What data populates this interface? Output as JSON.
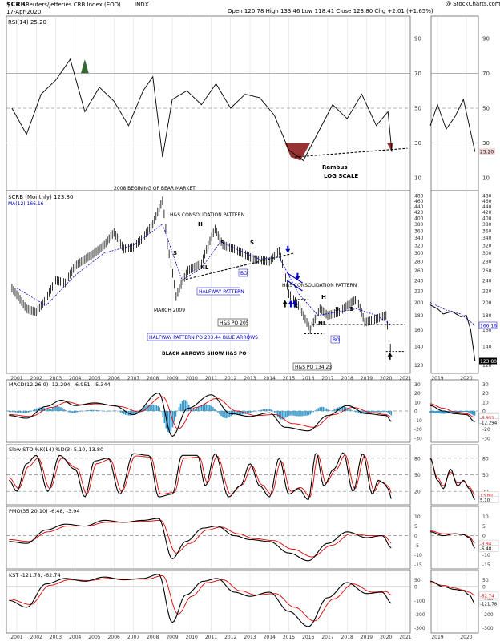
{
  "header": {
    "symbol": "$CRB",
    "name": "Reuters/Jefferies CRB Index (EOD)",
    "exchange": "INDX",
    "date": "17-Apr-2020",
    "ohlc": "Open 120.78   High 133.46   Low 118.41   Close 123.80   Chg +2.01 (+1.65%)",
    "chg_arrow": "▲",
    "copyright": "@ StockCharts.com"
  },
  "chart_data": [
    {
      "type": "line",
      "panel": "rsi",
      "title": "RSI(14) 25.20",
      "ylim": [
        0,
        100
      ],
      "yticks": [
        "10",
        "30",
        "50",
        "70",
        "90"
      ],
      "reference_lines": [
        30,
        50,
        70
      ],
      "last_value_label": "25.20",
      "x": [
        2000.75,
        2001.5,
        2002.25,
        2003,
        2003.75,
        2004.5,
        2005.25,
        2006,
        2006.75,
        2007.5,
        2008,
        2008.5,
        2009,
        2009.75,
        2010.5,
        2011.25,
        2012,
        2012.75,
        2013.5,
        2014.25,
        2015,
        2015.75,
        2016.5,
        2017.25,
        2018,
        2018.75,
        2019.5,
        2020.1,
        2020.3
      ],
      "values": [
        50,
        35,
        58,
        66,
        78,
        48,
        62,
        54,
        40,
        60,
        68,
        22,
        55,
        60,
        52,
        64,
        50,
        58,
        56,
        46,
        26,
        20,
        36,
        52,
        44,
        58,
        40,
        48,
        25
      ],
      "annotations": [
        "Rambus",
        "LOG SCALE",
        "2008 BEGINING OF BEAR MARKET"
      ]
    },
    {
      "type": "bar",
      "panel": "price",
      "title": "$CRB (Monthly) 123.80",
      "scale": "log",
      "ylim": [
        115,
        480
      ],
      "yticks": [
        "120",
        "140",
        "160",
        "180",
        "200",
        "220",
        "240",
        "260",
        "280",
        "300",
        "320",
        "340",
        "360",
        "380",
        "400",
        "420",
        "440",
        "460",
        "480"
      ],
      "series": [
        {
          "name": "$CRB (Monthly) 123.80",
          "x": [
            2000.75,
            2001.5,
            2002,
            2002.5,
            2003,
            2003.5,
            2004,
            2004.5,
            2005,
            2005.5,
            2006,
            2006.5,
            2007,
            2007.5,
            2008,
            2008.5,
            2008.75,
            2009.2,
            2009.8,
            2010.5,
            2011.2,
            2011.6,
            2012.2,
            2012.6,
            2013.2,
            2014,
            2014.5,
            2015,
            2015.5,
            2016.1,
            2016.6,
            2017,
            2017.6,
            2018.2,
            2018.5,
            2018.9,
            2019.5,
            2020,
            2020.3
          ],
          "values": [
            225,
            190,
            185,
            205,
            240,
            235,
            270,
            285,
            300,
            320,
            355,
            310,
            315,
            340,
            380,
            460,
            320,
            210,
            260,
            275,
            365,
            320,
            310,
            300,
            285,
            280,
            305,
            215,
            195,
            160,
            190,
            180,
            185,
            200,
            205,
            170,
            175,
            180,
            124
          ]
        },
        {
          "name": "MA(12) 166.16",
          "x": [
            2001,
            2002.5,
            2004,
            2005.5,
            2007,
            2008.5,
            2009.5,
            2010.5,
            2011.5,
            2012.5,
            2013.5,
            2014.5,
            2015.5,
            2016.5,
            2017.5,
            2018.5,
            2019.5,
            2020.3
          ],
          "values": [
            225,
            195,
            250,
            300,
            320,
            380,
            240,
            265,
            330,
            305,
            285,
            290,
            215,
            180,
            185,
            190,
            180,
            166
          ]
        }
      ],
      "annotations": [
        "H&S CONSOLIDATION PATTERN",
        "H",
        "S",
        "S",
        "S",
        "NL",
        "BO",
        "MARCH 2009",
        "HALFWAY PATTERN",
        "H&S PO 205",
        "H&S CONSOLIDATION PATTERN",
        "H",
        "S",
        "S",
        "S",
        "NL",
        "BO",
        "HALFWAY PATTERN PO 203.44 BLUE ARROWS",
        "BLACK ARROWS SHOW H&S PO",
        "H&S PO 134.23"
      ],
      "last_value_labels": [
        "166.16",
        "123.80"
      ]
    },
    {
      "type": "bar",
      "panel": "macd",
      "title": "MACD(12,26,9) -12.294, -6.951, -5.344",
      "ylim": [
        -32,
        32
      ],
      "yticks": [
        "-30",
        "-20",
        "-10",
        "0",
        "10",
        "20",
        "30"
      ],
      "last_value_labels": [
        "-5.344",
        "-6.951",
        "-12.294"
      ]
    },
    {
      "type": "line",
      "panel": "sto",
      "title": "Slow STO %K(14) %D(3) 5.10, 13.80",
      "ylim": [
        0,
        100
      ],
      "yticks": [
        "20",
        "50",
        "80"
      ],
      "last_value_labels": [
        "13.80",
        "5.10"
      ]
    },
    {
      "type": "line",
      "panel": "pmo",
      "title": "PMO(35,20,10) -6.48, -3.94",
      "ylim": [
        -16,
        14
      ],
      "yticks": [
        "-15",
        "-10",
        "-5",
        "0",
        "5",
        "10"
      ],
      "last_value_labels": [
        "-3.94",
        "-6.48"
      ]
    },
    {
      "type": "line",
      "panel": "kst",
      "title": "KST -121.78, -62.74",
      "ylim": [
        -320,
        100
      ],
      "yticks": [
        "-300",
        "-200",
        "-100",
        "0",
        "50"
      ],
      "last_value_labels": [
        "-62.74",
        "-121.78"
      ]
    }
  ],
  "xaxis_main": [
    "2001",
    "2002",
    "2003",
    "2004",
    "2005",
    "2006",
    "2007",
    "2008",
    "2009",
    "2010",
    "2011",
    "2012",
    "2013",
    "2014",
    "2015",
    "2016",
    "2017",
    "2018",
    "2019",
    "2020",
    "2021",
    "2022",
    "2023"
  ],
  "xaxis_side": [
    "2019",
    "2020"
  ],
  "colors": {
    "price_line": "#000000",
    "ma": "#0000cc",
    "signal": "#dd0000",
    "hist": "#3399cc",
    "rsi_fill_up": "#336633",
    "rsi_fill_dn": "#993333",
    "grid": "#d8d8d8",
    "annot_blue": "#0000cc",
    "axis_text": "#333333"
  }
}
